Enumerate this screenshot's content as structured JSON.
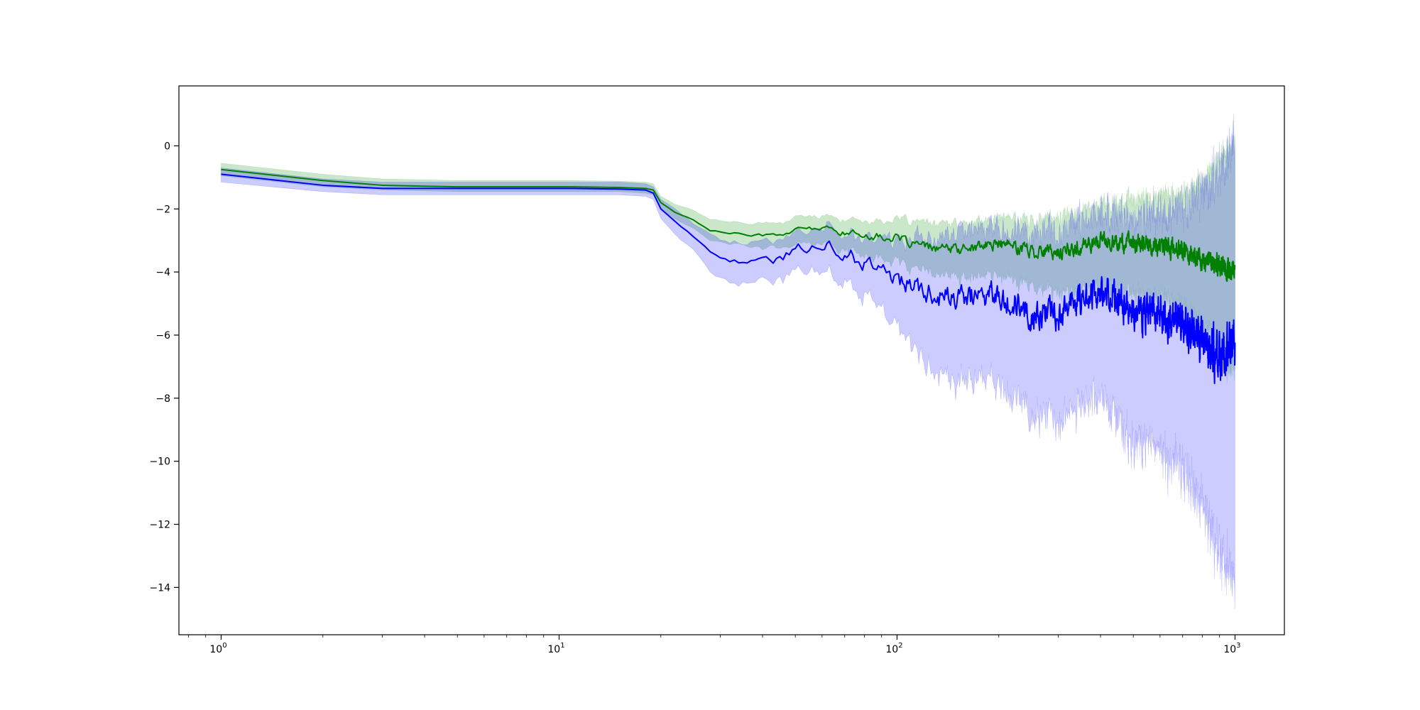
{
  "chart_data": {
    "type": "line",
    "title": "",
    "xlabel": "",
    "ylabel": "",
    "x_scale": "log",
    "xlim": [
      0.75,
      1400
    ],
    "ylim": [
      -15.5,
      1.9
    ],
    "grid": false,
    "x_ticks": [
      {
        "value": 1,
        "base": "10",
        "exp": "0"
      },
      {
        "value": 10,
        "base": "10",
        "exp": "1"
      },
      {
        "value": 100,
        "base": "10",
        "exp": "2"
      },
      {
        "value": 1000,
        "base": "10",
        "exp": "3"
      }
    ],
    "y_ticks": [
      {
        "value": 0,
        "label": "0"
      },
      {
        "value": -2,
        "label": "−2"
      },
      {
        "value": -4,
        "label": "−4"
      },
      {
        "value": -6,
        "label": "−6"
      },
      {
        "value": -8,
        "label": "−8"
      },
      {
        "value": -10,
        "label": "−10"
      },
      {
        "value": -12,
        "label": "−12"
      },
      {
        "value": -14,
        "label": "−14"
      }
    ],
    "series": [
      {
        "color": "#008000",
        "band_color": "#2ca02c",
        "x": [
          1,
          2,
          3,
          5,
          8,
          11,
          15,
          18,
          19,
          20,
          22,
          25,
          28,
          32,
          38,
          45,
          52,
          60,
          70,
          85,
          100,
          120,
          150,
          200,
          250,
          300,
          400,
          500,
          600,
          700,
          800,
          900,
          1000
        ],
        "y": [
          -0.75,
          -1.1,
          -1.25,
          -1.3,
          -1.3,
          -1.3,
          -1.32,
          -1.35,
          -1.4,
          -1.8,
          -2.1,
          -2.35,
          -2.7,
          -2.75,
          -2.85,
          -2.8,
          -2.65,
          -2.6,
          -2.75,
          -2.85,
          -2.95,
          -3.2,
          -3.3,
          -3.1,
          -3.3,
          -3.4,
          -3.0,
          -3.1,
          -3.2,
          -3.3,
          -3.6,
          -3.8,
          -4.0
        ],
        "lower": [
          -0.95,
          -1.3,
          -1.4,
          -1.45,
          -1.45,
          -1.45,
          -1.45,
          -1.5,
          -1.55,
          -2.0,
          -2.3,
          -2.6,
          -3.0,
          -3.05,
          -3.2,
          -3.15,
          -3.05,
          -3.05,
          -3.25,
          -3.4,
          -3.6,
          -3.9,
          -4.1,
          -4.0,
          -4.3,
          -4.5,
          -4.3,
          -4.5,
          -4.7,
          -4.9,
          -5.5,
          -6.3,
          -7.0
        ],
        "upper": [
          -0.55,
          -0.9,
          -1.05,
          -1.1,
          -1.1,
          -1.1,
          -1.12,
          -1.15,
          -1.2,
          -1.6,
          -1.85,
          -2.05,
          -2.35,
          -2.4,
          -2.5,
          -2.45,
          -2.3,
          -2.25,
          -2.35,
          -2.4,
          -2.4,
          -2.5,
          -2.55,
          -2.35,
          -2.4,
          -2.35,
          -1.9,
          -1.8,
          -1.7,
          -1.6,
          -1.2,
          -0.5,
          0.0
        ]
      },
      {
        "color": "#0000ff",
        "band_color": "#0000ff",
        "x": [
          1,
          2,
          3,
          5,
          8,
          11,
          15,
          18,
          19,
          20,
          22,
          25,
          28,
          32,
          38,
          45,
          52,
          60,
          70,
          85,
          100,
          120,
          150,
          200,
          250,
          300,
          400,
          500,
          600,
          700,
          800,
          900,
          1000
        ],
        "y": [
          -0.9,
          -1.25,
          -1.35,
          -1.35,
          -1.35,
          -1.35,
          -1.37,
          -1.4,
          -1.5,
          -2.0,
          -2.4,
          -2.9,
          -3.4,
          -3.6,
          -3.7,
          -3.6,
          -3.2,
          -3.1,
          -3.4,
          -3.8,
          -4.2,
          -4.6,
          -4.9,
          -4.6,
          -5.4,
          -5.3,
          -4.6,
          -5.2,
          -5.4,
          -5.6,
          -6.2,
          -6.7,
          -6.3
        ],
        "lower": [
          -1.15,
          -1.45,
          -1.55,
          -1.55,
          -1.55,
          -1.55,
          -1.55,
          -1.6,
          -1.7,
          -2.3,
          -2.8,
          -3.3,
          -4.0,
          -4.2,
          -4.3,
          -4.2,
          -3.8,
          -3.7,
          -4.1,
          -4.8,
          -5.5,
          -6.6,
          -7.4,
          -7.0,
          -8.3,
          -8.4,
          -7.5,
          -9.0,
          -9.3,
          -9.8,
          -11.0,
          -12.5,
          -13.5
        ],
        "upper": [
          -0.7,
          -1.05,
          -1.15,
          -1.15,
          -1.15,
          -1.15,
          -1.15,
          -1.2,
          -1.3,
          -1.7,
          -2.0,
          -2.5,
          -2.85,
          -3.05,
          -3.15,
          -3.05,
          -2.7,
          -2.55,
          -2.8,
          -3.0,
          -3.1,
          -3.0,
          -2.9,
          -2.6,
          -2.8,
          -2.9,
          -2.3,
          -2.5,
          -2.4,
          -2.2,
          -1.7,
          -1.0,
          -0.2
        ]
      }
    ]
  }
}
